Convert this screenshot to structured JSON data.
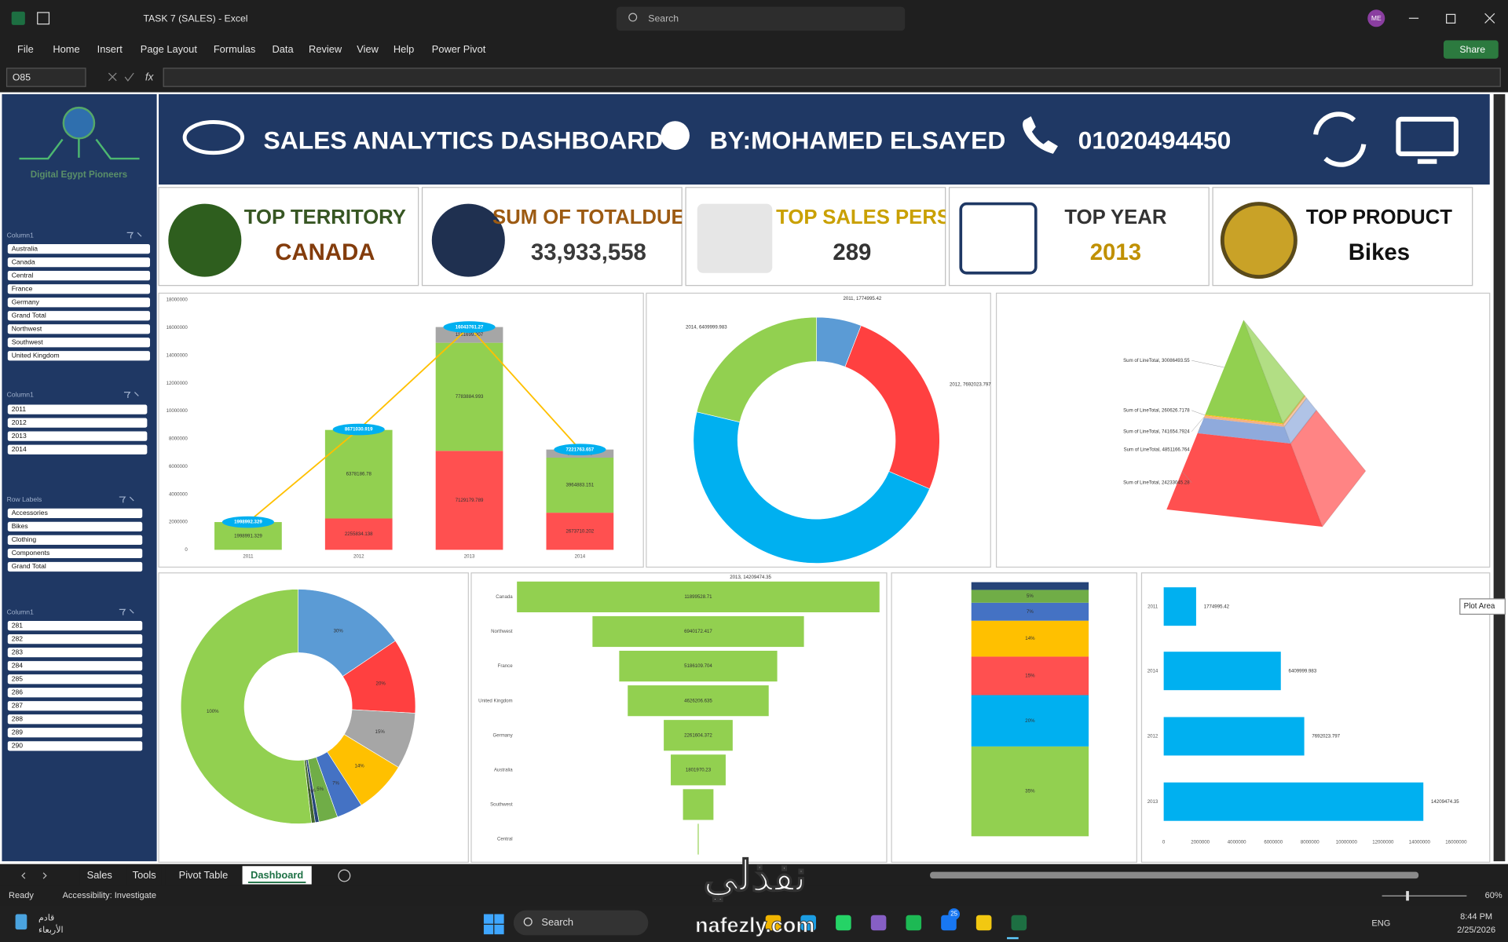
{
  "window": {
    "title": "TASK 7 (SALES)  -  Excel",
    "search": "Search",
    "user": "ME"
  },
  "ribbon": {
    "tabs": [
      "File",
      "Home",
      "Insert",
      "Page Layout",
      "Formulas",
      "Data",
      "Review",
      "View",
      "Help",
      "Power Pivot"
    ],
    "share": "Share"
  },
  "formula_bar": {
    "name_box": "O85",
    "function": "fx"
  },
  "dashboard": {
    "logo": "Digital Egypt Pioneers",
    "header": {
      "title": "SALES ANALYTICS DASHBOARD",
      "author": "BY:MOHAMED ELSAYED",
      "phone": "01020494450"
    },
    "slicers": [
      {
        "title": "Column1",
        "items": [
          "Australia",
          "Canada",
          "Central",
          "France",
          "Germany",
          "Grand Total",
          "Northwest",
          "Southwest",
          "United Kingdom"
        ]
      },
      {
        "title": "Column1",
        "items": [
          "2011",
          "2012",
          "2013",
          "2014"
        ]
      },
      {
        "title": "Row Labels",
        "items": [
          "Accessories",
          "Bikes",
          "Clothing",
          "Components",
          "Grand Total"
        ]
      },
      {
        "title": "Column1",
        "items": [
          "281",
          "282",
          "283",
          "284",
          "285",
          "286",
          "287",
          "288",
          "289",
          "290"
        ]
      }
    ],
    "kpis": [
      {
        "label": "TOP TERRITORY",
        "value": "CANADA"
      },
      {
        "label": "SUM OF TOTALDUE",
        "value": "33,933,558"
      },
      {
        "label": "TOP SALES PERSONL",
        "value": "289"
      },
      {
        "label": "TOP YEAR",
        "value": "2013"
      },
      {
        "label": "TOP PRODUCT",
        "value": "Bikes"
      }
    ],
    "charts": [
      {
        "type": "combo",
        "categories": [
          "2011",
          "2012",
          "2013",
          "2014"
        ],
        "series": [
          {
            "color": "#ff5050",
            "values": [
              null,
              2255834.138,
              7129179.789,
              2673710.202
            ]
          },
          {
            "color": "#92d050",
            "values": [
              1998991.329,
              6378186.78,
              7783884.993,
              3964883.151
            ]
          },
          {
            "color": "#a6a6a6",
            "values": [
              null,
              null,
              1131699.907,
              583470.325
            ]
          }
        ],
        "line": {
          "color": "#ffc000",
          "values": [
            1998992.329,
            8671030.919,
            16043761.27,
            7221763.657
          ]
        },
        "ylim": [
          0,
          18000000
        ],
        "yticks": [
          0,
          2000000,
          4000000,
          6000000,
          8000000,
          10000000,
          12000000,
          14000000,
          16000000,
          18000000
        ]
      },
      {
        "type": "donut",
        "values": [
          1774995.42,
          7692023.797,
          14209474.35,
          6409999.983
        ],
        "value_labels": [
          "2011, 1774995.42",
          "2012, 7692023.797",
          "2013, 14209474.35",
          "2014, 6409999.983"
        ],
        "colors": [
          "#5b9bd5",
          "#ff4040",
          "#00b0f0",
          "#92d050"
        ]
      },
      {
        "type": "pyramid",
        "values": [
          30086493.55,
          260626.7178,
          741654.7924,
          4851166.764,
          24233045.28
        ],
        "value_labels": [
          "Sum of LineTotal, 30086493.55",
          "Sum of LineTotal, 260626.7178",
          "Sum of LineTotal, 741654.7924",
          "Sum of LineTotal, 4851166.764",
          "Sum of LineTotal, 24233045.28"
        ],
        "colors": [
          "#92d050",
          "#ffc000",
          "#f4b183",
          "#8faadc",
          "#ff5050"
        ]
      },
      {
        "type": "donut",
        "values": [
          30,
          20,
          15,
          14,
          7,
          5,
          1,
          1,
          100
        ],
        "value_labels": [
          "30%",
          "20%",
          "15%",
          "14%",
          "7%",
          "5%",
          "1%",
          "1%",
          "100%"
        ],
        "colors": [
          "#5b9bd5",
          "#ff4040",
          "#a6a6a6",
          "#ffc000",
          "#4472c4",
          "#70ad47",
          "#264478",
          "#43682b",
          "#92d050"
        ]
      },
      {
        "type": "funnel",
        "categories": [
          "Canada",
          "Northwest",
          "France",
          "United Kingdom",
          "Germany",
          "Australia",
          "Southwest",
          "Central"
        ],
        "values": [
          11899528.71,
          6940172.417,
          5186109.704,
          4626206.635,
          2261604.372,
          1801970.23,
          1000000,
          30000
        ],
        "value_labels": [
          "11899528.71",
          "6940172.417",
          "5186109.704",
          "4626206.635",
          "2261604.372",
          "1801970.23",
          null,
          null
        ],
        "color": "#92d050"
      },
      {
        "type": "stacked_100",
        "values": [
          35,
          20,
          15,
          14,
          7,
          5,
          3
        ],
        "value_labels": [
          "35%",
          "20%",
          "15%",
          "14%",
          "7%",
          "5%",
          null
        ],
        "colors": [
          "#92d050",
          "#00b0f0",
          "#ff5050",
          "#ffc000",
          "#4472c4",
          "#70ad47",
          "#264478"
        ]
      },
      {
        "type": "hbar",
        "categories": [
          "2011",
          "2014",
          "2012",
          "2013"
        ],
        "values": [
          1774995.42,
          6409999.983,
          7692023.797,
          14209474.35
        ],
        "color": "#00b0f0",
        "xlim": [
          0,
          16000000
        ],
        "xticks": [
          0,
          2000000,
          4000000,
          6000000,
          8000000,
          10000000,
          12000000,
          14000000,
          16000000
        ]
      }
    ]
  },
  "tooltip": "Plot Area",
  "sheet_tabs": {
    "tabs": [
      "Sales",
      "Tools",
      "Pivot Table",
      "Dashboard"
    ],
    "active": 3
  },
  "status": {
    "ready": "Ready",
    "accessibility": "Accessibility: Investigate",
    "zoom": "60%"
  },
  "taskbar": {
    "weather": [
      "قادم",
      "الأربعاء"
    ],
    "search": "Search",
    "badge": "25",
    "language": "ENG",
    "time": "8:44 PM",
    "date": "2/25/2026"
  },
  "watermark": {
    "arabic": "نفذلي",
    "latin": "nafezly.com"
  }
}
